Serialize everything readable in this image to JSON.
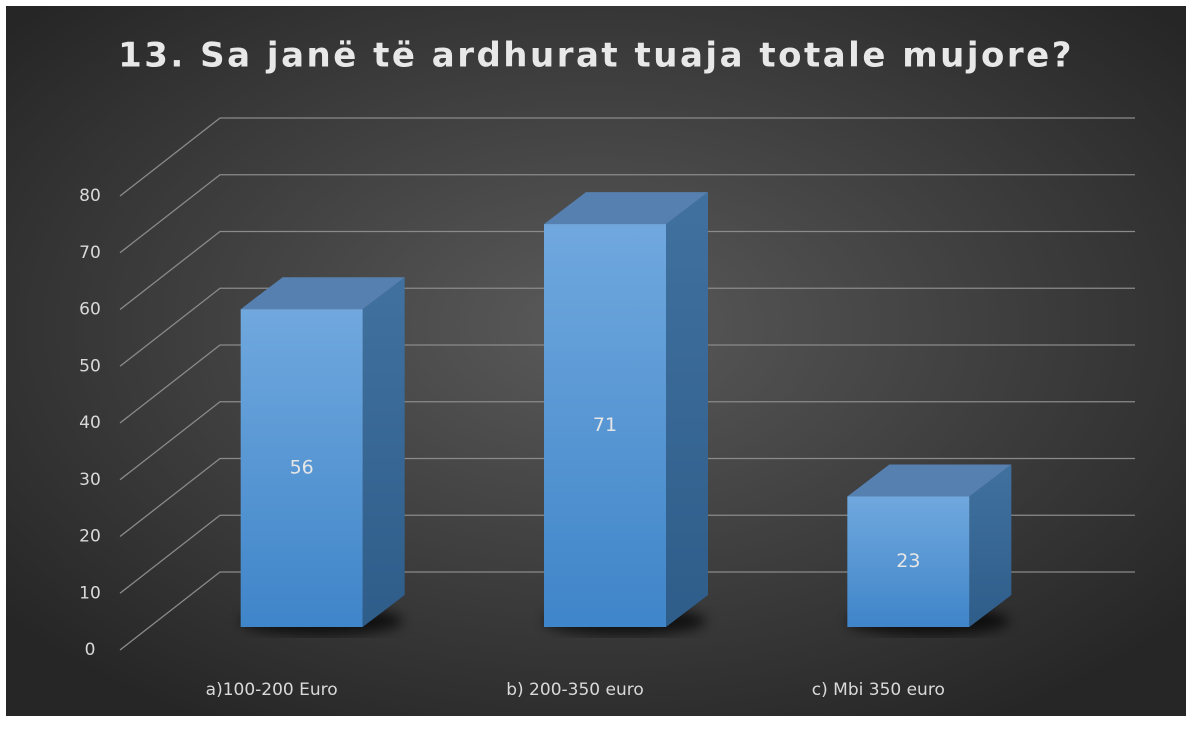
{
  "chart_data": {
    "type": "bar3d",
    "title": "13. Sa janë të ardhurat tuaja totale mujore?",
    "categories": [
      "a)100-200 Euro",
      "b) 200-350 euro",
      "c) Mbi 350 euro"
    ],
    "values": [
      56,
      71,
      23
    ],
    "color": "#5b9bd5",
    "ylim": [
      0,
      80
    ],
    "yticks": [
      0,
      10,
      20,
      30,
      40,
      50,
      60,
      70,
      80
    ],
    "grid": true
  }
}
